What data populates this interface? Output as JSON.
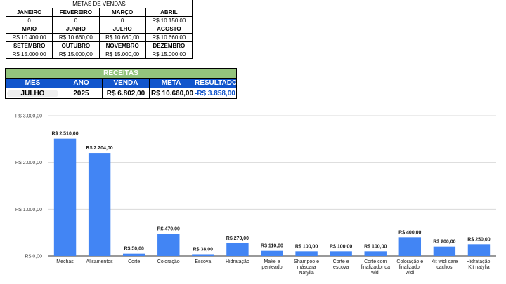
{
  "metas": {
    "title": "METAS DE VENDAS",
    "rows": [
      [
        "JANEIRO",
        "FEVEREIRO",
        "MARÇO",
        "ABRIL"
      ],
      [
        "0",
        "0",
        "0",
        "R$ 10.150,00"
      ],
      [
        "MAIO",
        "JUNHO",
        "JULHO",
        "AGOSTO"
      ],
      [
        "R$ 10.400,00",
        "R$ 10.660,00",
        "R$ 10.660,00",
        "R$ 10.660,00"
      ],
      [
        "SETEMBRO",
        "OUTUBRO",
        "NOVEMBRO",
        "DEZEMBRO"
      ],
      [
        "R$ 15.000,00",
        "R$ 15.000,00",
        "R$ 15.000,00",
        "R$ 15.000,00"
      ]
    ]
  },
  "receitas": {
    "title": "RECEITAS",
    "headers": [
      "MÊS",
      "ANO",
      "VENDA",
      "META",
      "RESULTADO"
    ],
    "values": {
      "mes": "JULHO",
      "ano": "2025",
      "venda": "R$ 6.802,00",
      "meta": "R$ 10.660,00",
      "resultado": "-R$ 3.858,00"
    }
  },
  "colors": {
    "bar": "#4285f4",
    "header_blue": "#1155cc",
    "header_green": "#93c47d"
  },
  "chart_data": {
    "type": "bar",
    "title": "",
    "xlabel": "",
    "ylabel": "",
    "ylim": [
      0,
      3000
    ],
    "yticks": [
      0,
      1000,
      2000,
      3000
    ],
    "ytick_labels": [
      "R$ 0,00",
      "R$ 1.000,00",
      "R$ 2.000,00",
      "R$ 3.000,00"
    ],
    "grid": true,
    "categories": [
      "Mechas",
      "Alisamentos",
      "Corte",
      "Coloração",
      "Escova",
      "Hidratação",
      "Make e penteado",
      "Shampoo e máscara Natylia",
      "Corte e escova",
      "Corte com finalizador da widi",
      "Coloração e finalizador widi",
      "Kit widi care cachos",
      "Hidratação, Kit natylia"
    ],
    "category_lines": [
      [
        "Mechas"
      ],
      [
        "Alisamentos"
      ],
      [
        "Corte"
      ],
      [
        "Coloração"
      ],
      [
        "Escova"
      ],
      [
        "Hidratação"
      ],
      [
        "Make e",
        "penteado"
      ],
      [
        "Shampoo e",
        "máscara",
        "Natylia"
      ],
      [
        "Corte e",
        "escova"
      ],
      [
        "Corte com",
        "finalizador da",
        "widi"
      ],
      [
        "Coloração e",
        "finalizador",
        "widi"
      ],
      [
        "Kit widi care",
        "cachos"
      ],
      [
        "Hidratação,",
        "Kit natylia"
      ]
    ],
    "values": [
      2510,
      2204,
      50,
      470,
      38,
      270,
      110,
      100,
      100,
      100,
      400,
      200,
      250
    ],
    "value_labels": [
      "R$ 2.510,00",
      "R$ 2.204,00",
      "R$ 50,00",
      "R$ 470,00",
      "R$ 38,00",
      "R$ 270,00",
      "R$ 110,00",
      "R$ 100,00",
      "R$ 100,00",
      "R$ 100,00",
      "R$ 400,00",
      "R$ 200,00",
      "R$ 250,00"
    ]
  }
}
